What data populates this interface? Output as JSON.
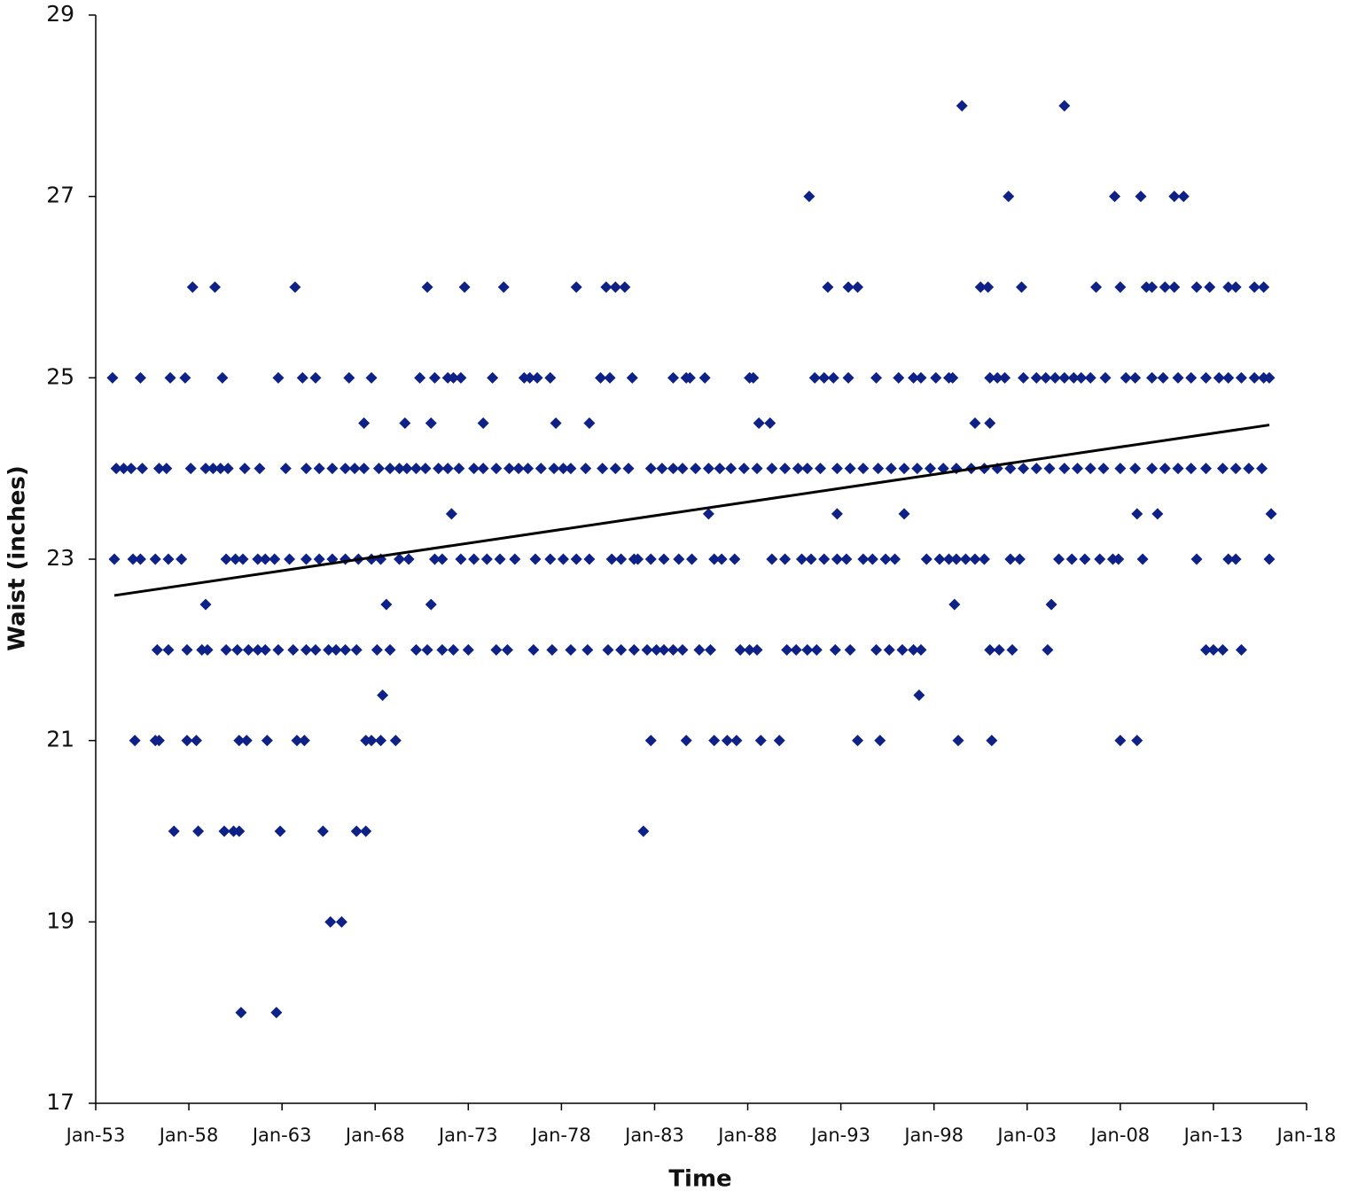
{
  "chart_data": {
    "type": "scatter",
    "x_label": "Time",
    "y_label": "Waist (inches)",
    "xlim": [
      1953,
      2018
    ],
    "ylim": [
      17,
      29
    ],
    "xticks": [
      {
        "value": 1953,
        "label": "Jan-53"
      },
      {
        "value": 1958,
        "label": "Jan-58"
      },
      {
        "value": 1963,
        "label": "Jan-63"
      },
      {
        "value": 1968,
        "label": "Jan-68"
      },
      {
        "value": 1973,
        "label": "Jan-73"
      },
      {
        "value": 1978,
        "label": "Jan-78"
      },
      {
        "value": 1983,
        "label": "Jan-83"
      },
      {
        "value": 1988,
        "label": "Jan-88"
      },
      {
        "value": 1993,
        "label": "Jan-93"
      },
      {
        "value": 1998,
        "label": "Jan-98"
      },
      {
        "value": 2003,
        "label": "Jan-03"
      },
      {
        "value": 2008,
        "label": "Jan-08"
      },
      {
        "value": 2013,
        "label": "Jan-13"
      },
      {
        "value": 2018,
        "label": "Jan-18"
      }
    ],
    "yticks": [
      17,
      19,
      21,
      23,
      25,
      27,
      29
    ],
    "color": "#0d2186",
    "trendline": {
      "color": "#000000",
      "x": [
        1954,
        2016
      ],
      "values": [
        22.6,
        24.48
      ]
    },
    "x": [
      1953.9,
      1955.4,
      1957.0,
      1957.8,
      1959.8,
      1962.8,
      1964.1,
      1964.8,
      1966.6,
      1967.8,
      1970.4,
      1971.2,
      1971.9,
      1972.2,
      1972.6,
      1974.3,
      1976.0,
      1976.3,
      1976.7,
      1977.4,
      1980.1,
      1980.6,
      1981.8,
      1984.0,
      1984.7,
      1984.9,
      1985.7,
      1988.1,
      1988.3,
      1991.6,
      1992.1,
      1992.6,
      1993.4,
      1994.9,
      1996.1,
      1996.9,
      1997.3,
      1998.1,
      1998.8,
      1999.0,
      2001.0,
      2001.4,
      2001.8,
      2002.8,
      2003.5,
      2004.0,
      2004.5,
      2005.0,
      2005.5,
      2005.9,
      2006.4,
      2007.2,
      2008.3,
      2008.8,
      2009.7,
      2010.3,
      2011.1,
      2011.8,
      2012.6,
      2013.3,
      2013.8,
      2014.5,
      2015.2,
      2015.7,
      2016.0,
      1954.1,
      1954.5,
      1954.9,
      1955.5,
      1956.4,
      1956.8,
      1958.1,
      1958.9,
      1959.3,
      1959.7,
      1960.1,
      1961.0,
      1961.8,
      1963.2,
      1964.3,
      1965.0,
      1965.7,
      1966.4,
      1966.9,
      1967.4,
      1968.2,
      1968.8,
      1969.3,
      1969.7,
      1970.2,
      1970.7,
      1971.4,
      1971.9,
      1972.5,
      1973.3,
      1973.8,
      1974.5,
      1975.2,
      1975.7,
      1976.2,
      1976.9,
      1977.6,
      1978.1,
      1978.5,
      1979.3,
      1980.2,
      1980.9,
      1981.6,
      1982.8,
      1983.4,
      1984.0,
      1984.5,
      1985.2,
      1985.9,
      1986.5,
      1987.1,
      1987.8,
      1988.5,
      1989.3,
      1990.0,
      1990.7,
      1991.2,
      1991.9,
      1992.8,
      1993.5,
      1994.2,
      1995.0,
      1995.7,
      1996.4,
      1997.1,
      1997.8,
      1998.5,
      1999.2,
      2000.0,
      2000.7,
      2001.4,
      2002.1,
      2002.8,
      2003.5,
      2004.2,
      2005.0,
      2005.7,
      2006.4,
      2007.1,
      2008.0,
      2008.8,
      2009.7,
      2010.4,
      2011.1,
      2011.8,
      2012.6,
      2013.5,
      2014.2,
      2014.9,
      2015.6,
      1954.0,
      1955.0,
      1955.4,
      1956.2,
      1956.9,
      1957.6,
      1960.0,
      1960.5,
      1960.9,
      1961.7,
      1962.1,
      1962.6,
      1963.4,
      1964.3,
      1965.0,
      1965.7,
      1966.4,
      1967.1,
      1967.8,
      1968.3,
      1969.3,
      1969.8,
      1971.2,
      1971.6,
      1972.6,
      1973.3,
      1974.0,
      1974.7,
      1975.5,
      1976.6,
      1977.4,
      1978.1,
      1978.8,
      1979.5,
      1980.7,
      1981.2,
      1981.9,
      1982.1,
      1982.8,
      1983.5,
      1984.3,
      1985.0,
      1986.2,
      1986.6,
      1987.3,
      1989.3,
      1990.0,
      1990.9,
      1991.4,
      1992.1,
      1992.8,
      1993.3,
      1994.2,
      1994.7,
      1995.4,
      1995.9,
      1997.6,
      1998.3,
      1998.8,
      1999.2,
      1999.7,
      2000.2,
      2000.7,
      2002.1,
      2002.6,
      2004.7,
      2005.4,
      2006.1,
      2006.9,
      2007.6,
      2007.9,
      2009.2,
      2012.1,
      2013.8,
      2014.2,
      2016.0,
      1956.3,
      1956.9,
      1957.9,
      1958.7,
      1959.0,
      1960.0,
      1960.6,
      1961.2,
      1961.7,
      1962.1,
      1962.8,
      1963.6,
      1964.3,
      1964.8,
      1965.5,
      1965.9,
      1966.4,
      1967.0,
      1968.1,
      1968.8,
      1970.2,
      1970.8,
      1971.6,
      1972.2,
      1973.0,
      1974.5,
      1975.1,
      1976.5,
      1977.5,
      1978.5,
      1979.4,
      1980.5,
      1981.2,
      1981.9,
      1982.6,
      1983.1,
      1983.5,
      1984.0,
      1984.5,
      1985.4,
      1986.0,
      1987.6,
      1988.1,
      1988.5,
      1990.1,
      1990.6,
      1991.2,
      1991.7,
      1992.7,
      1993.5,
      1994.9,
      1995.6,
      1996.3,
      1996.9,
      1997.3,
      2001.0,
      2001.5,
      2002.2,
      2004.1,
      2012.6,
      2013.0,
      2013.5,
      2014.5,
      1958.2,
      1959.4,
      1963.7,
      1970.8,
      1972.8,
      1974.9,
      1978.8,
      1980.4,
      1980.9,
      1981.4,
      1992.3,
      1993.4,
      1993.9,
      2000.5,
      2000.9,
      2002.7,
      2006.7,
      2008.0,
      2009.4,
      2009.7,
      2010.4,
      2010.9,
      2012.1,
      2012.8,
      2013.8,
      2014.2,
      2015.2,
      2015.7,
      1991.3,
      2002.0,
      2007.7,
      2009.1,
      2010.9,
      2011.4,
      1999.5,
      2005.0,
      1967.4,
      1969.6,
      1971.0,
      1973.8,
      1977.7,
      1979.5,
      1988.6,
      1989.2,
      2000.2,
      2001.0,
      1972.1,
      1985.9,
      1992.8,
      1996.4,
      2008.9,
      2010.0,
      2016.1,
      1958.9,
      1968.6,
      1971.0,
      1999.1,
      2004.3,
      1968.4,
      1997.2,
      1955.1,
      1956.2,
      1956.4,
      1957.9,
      1958.4,
      1960.7,
      1961.1,
      1962.2,
      1963.8,
      1964.2,
      1967.5,
      1967.8,
      1968.3,
      1969.1,
      1982.8,
      1984.7,
      1986.2,
      1986.9,
      1987.4,
      1988.7,
      1989.7,
      1993.9,
      1995.1,
      1999.3,
      2001.1,
      2008.0,
      2008.9,
      1957.2,
      1958.5,
      1959.9,
      1960.4,
      1960.7,
      1962.9,
      1965.2,
      1967.0,
      1967.5,
      1982.4,
      1965.6,
      1966.2,
      1960.8,
      1962.7
    ],
    "values": [
      25,
      25,
      25,
      25,
      25,
      25,
      25,
      25,
      25,
      25,
      25,
      25,
      25,
      25,
      25,
      25,
      25,
      25,
      25,
      25,
      25,
      25,
      25,
      25,
      25,
      25,
      25,
      25,
      25,
      25,
      25,
      25,
      25,
      25,
      25,
      25,
      25,
      25,
      25,
      25,
      25,
      25,
      25,
      25,
      25,
      25,
      25,
      25,
      25,
      25,
      25,
      25,
      25,
      25,
      25,
      25,
      25,
      25,
      25,
      25,
      25,
      25,
      25,
      25,
      25,
      24,
      24,
      24,
      24,
      24,
      24,
      24,
      24,
      24,
      24,
      24,
      24,
      24,
      24,
      24,
      24,
      24,
      24,
      24,
      24,
      24,
      24,
      24,
      24,
      24,
      24,
      24,
      24,
      24,
      24,
      24,
      24,
      24,
      24,
      24,
      24,
      24,
      24,
      24,
      24,
      24,
      24,
      24,
      24,
      24,
      24,
      24,
      24,
      24,
      24,
      24,
      24,
      24,
      24,
      24,
      24,
      24,
      24,
      24,
      24,
      24,
      24,
      24,
      24,
      24,
      24,
      24,
      24,
      24,
      24,
      24,
      24,
      24,
      24,
      24,
      24,
      24,
      24,
      24,
      24,
      24,
      24,
      24,
      24,
      24,
      24,
      24,
      24,
      24,
      24,
      23,
      23,
      23,
      23,
      23,
      23,
      23,
      23,
      23,
      23,
      23,
      23,
      23,
      23,
      23,
      23,
      23,
      23,
      23,
      23,
      23,
      23,
      23,
      23,
      23,
      23,
      23,
      23,
      23,
      23,
      23,
      23,
      23,
      23,
      23,
      23,
      23,
      23,
      23,
      23,
      23,
      23,
      23,
      23,
      23,
      23,
      23,
      23,
      23,
      23,
      23,
      23,
      23,
      23,
      23,
      23,
      23,
      23,
      23,
      23,
      23,
      23,
      23,
      23,
      23,
      23,
      23,
      23,
      23,
      23,
      23,
      23,
      23,
      23,
      23,
      23,
      22,
      22,
      22,
      22,
      22,
      22,
      22,
      22,
      22,
      22,
      22,
      22,
      22,
      22,
      22,
      22,
      22,
      22,
      22,
      22,
      22,
      22,
      22,
      22,
      22,
      22,
      22,
      22,
      22,
      22,
      22,
      22,
      22,
      22,
      22,
      22,
      22,
      22,
      22,
      22,
      22,
      22,
      22,
      22,
      22,
      22,
      22,
      22,
      22,
      22,
      22,
      22,
      22,
      22,
      22,
      22,
      22,
      22,
      22,
      22,
      22,
      22,
      22,
      26,
      26,
      26,
      26,
      26,
      26,
      26,
      26,
      26,
      26,
      26,
      26,
      26,
      26,
      26,
      26,
      26,
      26,
      26,
      26,
      26,
      26,
      26,
      26,
      26,
      26,
      26,
      26,
      27,
      27,
      27,
      27,
      27,
      27,
      28,
      28,
      24.5,
      24.5,
      24.5,
      24.5,
      24.5,
      24.5,
      24.5,
      24.5,
      24.5,
      24.5,
      23.5,
      23.5,
      23.5,
      23.5,
      23.5,
      23.5,
      23.5,
      22.5,
      22.5,
      22.5,
      22.5,
      22.5,
      21.5,
      21.5,
      21,
      21,
      21,
      21,
      21,
      21,
      21,
      21,
      21,
      21,
      21,
      21,
      21,
      21,
      21,
      21,
      21,
      21,
      21,
      21,
      21,
      21,
      21,
      21,
      21,
      21,
      21,
      20,
      20,
      20,
      20,
      20,
      20,
      20,
      20,
      20,
      20,
      19,
      19,
      18,
      18
    ]
  }
}
